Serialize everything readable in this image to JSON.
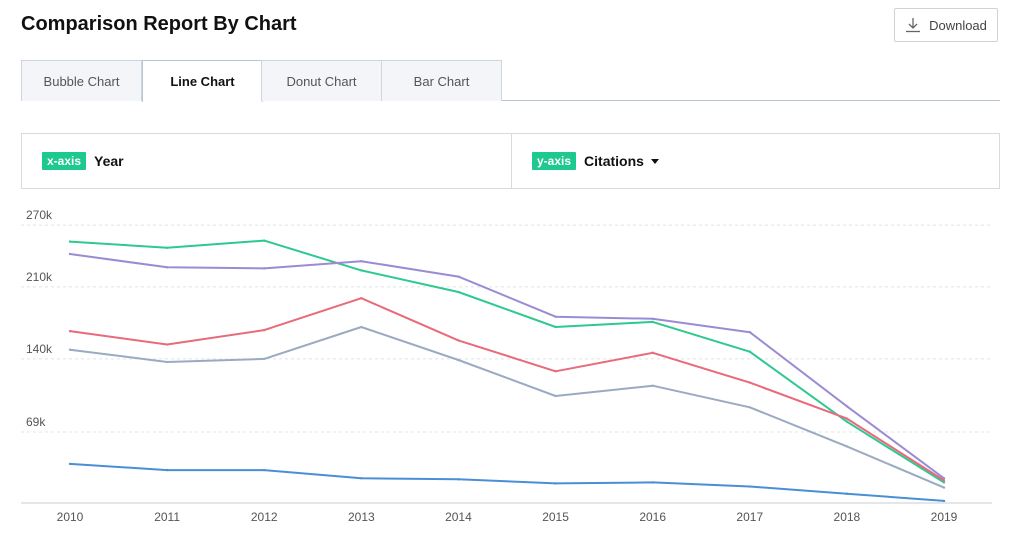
{
  "header": {
    "title": "Comparison Report By Chart",
    "download_label": "Download"
  },
  "tabs": [
    {
      "label": "Bubble Chart",
      "active": false
    },
    {
      "label": "Line Chart",
      "active": true
    },
    {
      "label": "Donut Chart",
      "active": false
    },
    {
      "label": "Bar Chart",
      "active": false
    }
  ],
  "axes": {
    "x_tag": "x-axis",
    "x_value": "Year",
    "y_tag": "y-axis",
    "y_value": "Citations"
  },
  "colors": {
    "accent": "#1ec98f"
  },
  "chart_data": {
    "type": "line",
    "x": [
      "2010",
      "2011",
      "2012",
      "2013",
      "2014",
      "2015",
      "2016",
      "2017",
      "2018",
      "2019"
    ],
    "ylim": [
      0,
      275000
    ],
    "yticks": [
      {
        "value": 69000,
        "label": "69k"
      },
      {
        "value": 140000,
        "label": "140k"
      },
      {
        "value": 210000,
        "label": "210k"
      },
      {
        "value": 270000,
        "label": "270k"
      }
    ],
    "grid": true,
    "series": [
      {
        "color": "#2ec98f",
        "values": [
          254000,
          248000,
          255000,
          226000,
          205000,
          171000,
          176000,
          147000,
          79000,
          20000
        ]
      },
      {
        "color": "#9b8bd4",
        "values": [
          242000,
          229000,
          228000,
          235000,
          220000,
          181000,
          179000,
          166000,
          94000,
          24000
        ]
      },
      {
        "color": "#e86a7b",
        "values": [
          167000,
          154000,
          168000,
          199000,
          158000,
          128000,
          146000,
          117000,
          82000,
          22000
        ]
      },
      {
        "color": "#9aaac3",
        "values": [
          149000,
          137000,
          140000,
          171000,
          139000,
          104000,
          114000,
          93000,
          55000,
          15000
        ]
      },
      {
        "color": "#4a8fd6",
        "values": [
          38000,
          32000,
          32000,
          24000,
          23000,
          19000,
          20000,
          16000,
          9000,
          2000
        ]
      }
    ]
  }
}
